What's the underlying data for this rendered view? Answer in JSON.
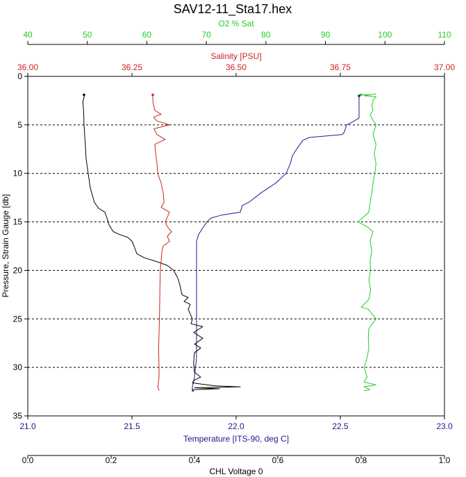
{
  "chart_data": {
    "type": "line",
    "title": "SAV12-11_Sta17.hex",
    "grid": "horizontal dashed",
    "colors": {
      "o2": "#22cc22",
      "salinity": "#cc2222",
      "temperature": "#1a1a8c",
      "chl": "#000000",
      "frame": "#000000",
      "grid": "#000000"
    },
    "y_axis": {
      "label": "Pressure, Strain Gauge [db]",
      "range": [
        0,
        35
      ],
      "inverted": true,
      "ticks": [
        "0",
        "5",
        "10",
        "15",
        "20",
        "25",
        "30",
        "35"
      ],
      "tick_values": [
        0,
        5,
        10,
        15,
        20,
        25,
        30,
        35
      ]
    },
    "x_axes": {
      "o2": {
        "label": "O2 % Sat",
        "range": [
          40,
          110
        ],
        "ticks": [
          "40",
          "50",
          "60",
          "70",
          "80",
          "90",
          "100",
          "110"
        ],
        "tick_values": [
          40,
          50,
          60,
          70,
          80,
          90,
          100,
          110
        ]
      },
      "salinity": {
        "label": "Salinity [PSU]",
        "range": [
          36.0,
          37.0
        ],
        "ticks": [
          "36.00",
          "36.25",
          "36.50",
          "36.75",
          "37.00"
        ],
        "tick_values": [
          36.0,
          36.25,
          36.5,
          36.75,
          37.0
        ]
      },
      "temperature": {
        "label": "Temperature [ITS-90, deg C]",
        "range": [
          21.0,
          23.0
        ],
        "ticks": [
          "21.0",
          "21.5",
          "22.0",
          "22.5",
          "23.0"
        ],
        "tick_values": [
          21.0,
          21.5,
          22.0,
          22.5,
          23.0
        ]
      },
      "chl": {
        "label": "CHL Voltage 0",
        "range": [
          0.0,
          1.0
        ],
        "ticks": [
          "0.0",
          "0.2",
          "0.4",
          "0.6",
          "0.8",
          "1.0"
        ],
        "tick_values": [
          0.0,
          0.2,
          0.4,
          0.6,
          0.8,
          1.0
        ]
      }
    },
    "series": [
      {
        "name": "Temperature [ITS-90, deg C]",
        "axis": "temperature",
        "points": [
          [
            22.59,
            2.0
          ],
          [
            22.59,
            2.5
          ],
          [
            22.59,
            3.3
          ],
          [
            22.59,
            4.3
          ],
          [
            22.55,
            4.8
          ],
          [
            22.53,
            5.0
          ],
          [
            22.52,
            5.7
          ],
          [
            22.51,
            6.0
          ],
          [
            22.35,
            6.3
          ],
          [
            22.32,
            6.6
          ],
          [
            22.29,
            7.5
          ],
          [
            22.27,
            8.2
          ],
          [
            22.26,
            9.0
          ],
          [
            22.24,
            10.0
          ],
          [
            22.19,
            11.0
          ],
          [
            22.12,
            12.0
          ],
          [
            22.06,
            13.0
          ],
          [
            22.03,
            13.3
          ],
          [
            22.02,
            14.0
          ],
          [
            21.93,
            14.3
          ],
          [
            21.88,
            14.6
          ],
          [
            21.86,
            15.0
          ],
          [
            21.84,
            15.6
          ],
          [
            21.82,
            16.3
          ],
          [
            21.81,
            17.0
          ],
          [
            21.81,
            20.0
          ],
          [
            21.81,
            25.0
          ],
          [
            21.81,
            29.0
          ],
          [
            21.8,
            31.0
          ],
          [
            21.79,
            32.0
          ],
          [
            21.79,
            32.5
          ]
        ]
      },
      {
        "name": "CHL Voltage 0",
        "axis": "chl",
        "points": [
          [
            0.135,
            1.9
          ],
          [
            0.135,
            2.2
          ],
          [
            0.132,
            2.6
          ],
          [
            0.134,
            3.5
          ],
          [
            0.135,
            5.0
          ],
          [
            0.138,
            7.0
          ],
          [
            0.14,
            8.5
          ],
          [
            0.145,
            10.0
          ],
          [
            0.15,
            11.5
          ],
          [
            0.16,
            13.0
          ],
          [
            0.17,
            13.6
          ],
          [
            0.185,
            14.0
          ],
          [
            0.19,
            14.6
          ],
          [
            0.195,
            15.3
          ],
          [
            0.205,
            16.0
          ],
          [
            0.22,
            16.3
          ],
          [
            0.24,
            16.6
          ],
          [
            0.25,
            17.0
          ],
          [
            0.255,
            17.5
          ],
          [
            0.262,
            18.3
          ],
          [
            0.28,
            18.7
          ],
          [
            0.31,
            19.1
          ],
          [
            0.335,
            19.5
          ],
          [
            0.35,
            20.0
          ],
          [
            0.36,
            20.8
          ],
          [
            0.365,
            21.5
          ],
          [
            0.37,
            22.5
          ],
          [
            0.385,
            22.8
          ],
          [
            0.375,
            23.2
          ],
          [
            0.39,
            23.5
          ],
          [
            0.385,
            24.0
          ],
          [
            0.395,
            25.0
          ],
          [
            0.392,
            25.5
          ],
          [
            0.42,
            25.8
          ],
          [
            0.398,
            26.4
          ],
          [
            0.42,
            27.0
          ],
          [
            0.4,
            27.6
          ],
          [
            0.415,
            28.0
          ],
          [
            0.4,
            28.5
          ],
          [
            0.398,
            29.5
          ],
          [
            0.4,
            30.5
          ],
          [
            0.415,
            31.0
          ],
          [
            0.4,
            31.3
          ],
          [
            0.395,
            31.6
          ],
          [
            0.45,
            31.9
          ],
          [
            0.51,
            32.0
          ],
          [
            0.4,
            32.1
          ],
          [
            0.46,
            32.2
          ],
          [
            0.395,
            32.3
          ],
          [
            0.398,
            32.5
          ]
        ]
      },
      {
        "name": "Salinity [PSU]",
        "axis": "salinity",
        "points": [
          [
            36.3,
            1.9
          ],
          [
            36.3,
            2.5
          ],
          [
            36.302,
            3.0
          ],
          [
            36.305,
            3.5
          ],
          [
            36.32,
            3.9
          ],
          [
            36.302,
            4.2
          ],
          [
            36.31,
            4.6
          ],
          [
            36.34,
            5.0
          ],
          [
            36.303,
            5.4
          ],
          [
            36.31,
            6.0
          ],
          [
            36.33,
            6.5
          ],
          [
            36.305,
            7.0
          ],
          [
            36.307,
            8.0
          ],
          [
            36.31,
            9.0
          ],
          [
            36.312,
            10.0
          ],
          [
            36.32,
            11.0
          ],
          [
            36.325,
            12.0
          ],
          [
            36.327,
            13.0
          ],
          [
            36.32,
            13.5
          ],
          [
            36.34,
            14.0
          ],
          [
            36.335,
            14.5
          ],
          [
            36.33,
            15.0
          ],
          [
            36.335,
            15.5
          ],
          [
            36.345,
            16.0
          ],
          [
            36.335,
            16.5
          ],
          [
            36.34,
            17.0
          ],
          [
            36.325,
            17.5
          ],
          [
            36.322,
            18.0
          ],
          [
            36.318,
            20.0
          ],
          [
            36.317,
            22.0
          ],
          [
            36.316,
            25.0
          ],
          [
            36.314,
            28.0
          ],
          [
            36.315,
            30.0
          ],
          [
            36.315,
            31.0
          ],
          [
            36.312,
            32.0
          ],
          [
            36.315,
            32.4
          ]
        ]
      },
      {
        "name": "O2 % Sat",
        "axis": "o2",
        "points": [
          [
            96.0,
            1.9
          ],
          [
            97.5,
            1.9
          ],
          [
            98.5,
            1.8
          ],
          [
            96.5,
            2.0
          ],
          [
            98.5,
            2.1
          ],
          [
            98.0,
            2.5
          ],
          [
            97.8,
            3.0
          ],
          [
            98.0,
            3.5
          ],
          [
            97.5,
            4.0
          ],
          [
            98.5,
            5.0
          ],
          [
            98.0,
            6.0
          ],
          [
            98.5,
            7.0
          ],
          [
            98.2,
            8.0
          ],
          [
            98.5,
            9.0
          ],
          [
            98.3,
            10.0
          ],
          [
            98.0,
            11.0
          ],
          [
            97.8,
            12.0
          ],
          [
            97.5,
            13.0
          ],
          [
            97.3,
            14.0
          ],
          [
            95.5,
            15.0
          ],
          [
            97.0,
            15.5
          ],
          [
            98.0,
            16.0
          ],
          [
            97.5,
            17.0
          ],
          [
            97.8,
            18.0
          ],
          [
            97.5,
            19.0
          ],
          [
            97.6,
            20.0
          ],
          [
            97.3,
            21.0
          ],
          [
            97.6,
            22.0
          ],
          [
            97.3,
            23.0
          ],
          [
            96.0,
            23.8
          ],
          [
            97.2,
            24.0
          ],
          [
            98.5,
            25.0
          ],
          [
            97.3,
            26.0
          ],
          [
            97.2,
            27.0
          ],
          [
            97.3,
            28.0
          ],
          [
            97.0,
            29.0
          ],
          [
            96.5,
            30.0
          ],
          [
            97.0,
            31.0
          ],
          [
            96.5,
            31.5
          ],
          [
            98.5,
            31.8
          ],
          [
            96.5,
            32.0
          ],
          [
            97.5,
            32.3
          ],
          [
            96.5,
            32.4
          ]
        ]
      }
    ]
  }
}
